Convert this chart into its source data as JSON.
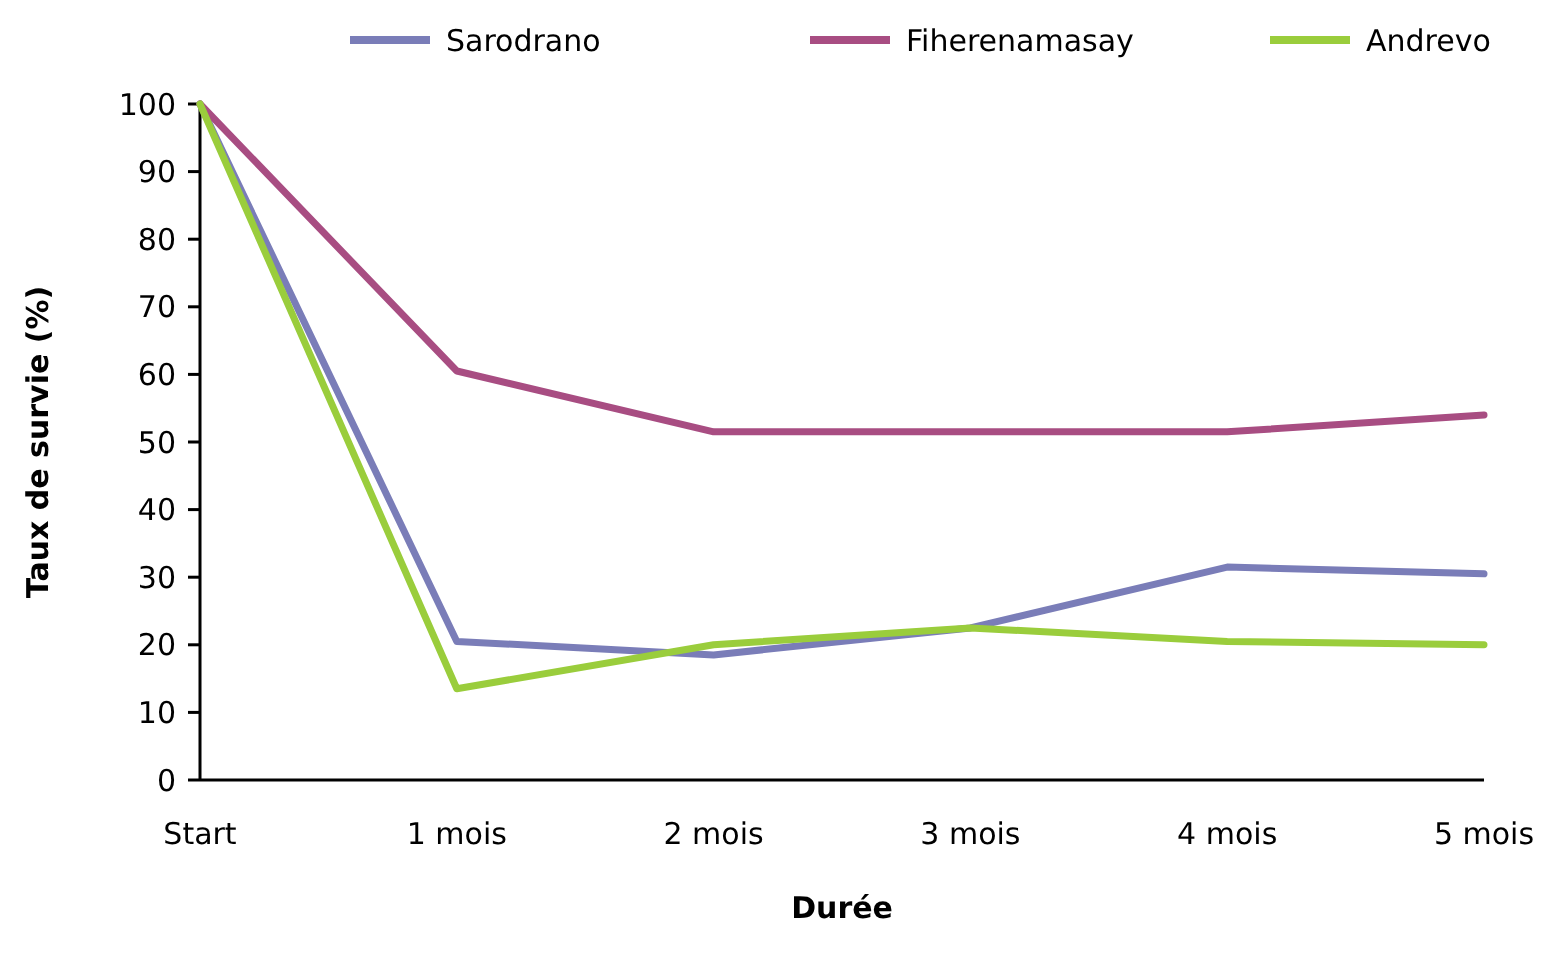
{
  "chart_data": {
    "type": "line",
    "xlabel": "Durée",
    "ylabel": "Taux de survie (%)",
    "categories": [
      "Start",
      "1 mois",
      "2 mois",
      "3 mois",
      "4 mois",
      "5 mois"
    ],
    "series": [
      {
        "name": "Sarodrano",
        "color": "#7a7db8",
        "values": [
          100,
          20.5,
          18.5,
          22.5,
          31.5,
          30.5
        ]
      },
      {
        "name": "Fiherenamasay",
        "color": "#a84d82",
        "values": [
          100,
          60.5,
          51.5,
          51.5,
          51.5,
          54
        ]
      },
      {
        "name": "Andrevo",
        "color": "#9acd3c",
        "values": [
          100,
          13.5,
          20,
          22.5,
          20.5,
          20
        ]
      }
    ],
    "ylim": [
      0,
      100
    ],
    "yticks": [
      0,
      10,
      20,
      30,
      40,
      50,
      60,
      70,
      80,
      90,
      100
    ],
    "grid": false,
    "legend": "top",
    "marker": "none",
    "line_style": "solid"
  }
}
